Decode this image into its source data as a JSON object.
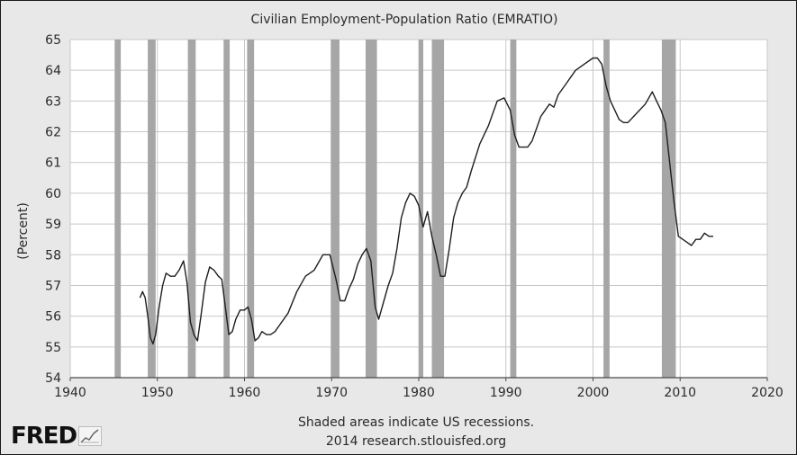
{
  "logo": {
    "text": "FRED"
  },
  "footer": {
    "line1": "Shaded areas indicate US recessions.",
    "line2": "2014 research.stlouisfed.org"
  },
  "colors": {
    "background": "#e8e8e8",
    "plot_background": "#ffffff",
    "recession": "#a6a6a6",
    "line": "#1e1e1e",
    "grid": "#c8c8c8"
  },
  "chart_data": {
    "type": "line",
    "title": "Civilian Employment-Population Ratio (EMRATIO)",
    "xlabel": "",
    "ylabel": "(Percent)",
    "xlim": [
      1940,
      2020
    ],
    "ylim": [
      54,
      65
    ],
    "x_ticks": [
      1940,
      1950,
      1960,
      1970,
      1980,
      1990,
      2000,
      2010,
      2020
    ],
    "y_ticks": [
      54,
      55,
      56,
      57,
      58,
      59,
      60,
      61,
      62,
      63,
      64,
      65
    ],
    "grid": true,
    "recessions": [
      [
        1945.1,
        1945.8
      ],
      [
        1948.9,
        1949.8
      ],
      [
        1953.5,
        1954.4
      ],
      [
        1957.6,
        1958.3
      ],
      [
        1960.3,
        1961.1
      ],
      [
        1969.9,
        1970.9
      ],
      [
        1973.9,
        1975.2
      ],
      [
        1980.0,
        1980.5
      ],
      [
        1981.5,
        1982.9
      ],
      [
        1990.5,
        1991.2
      ],
      [
        2001.2,
        2001.9
      ],
      [
        2007.9,
        2009.5
      ]
    ],
    "series": [
      {
        "x": [
          1948.0,
          1948.3,
          1948.6,
          1948.9,
          1949.2,
          1949.5,
          1949.8,
          1950.2,
          1950.6,
          1951.0,
          1951.5,
          1952.0,
          1952.5,
          1953.0,
          1953.4,
          1953.8,
          1954.2,
          1954.6,
          1955.0,
          1955.5,
          1956.0,
          1956.5,
          1957.0,
          1957.4,
          1957.8,
          1958.2,
          1958.6,
          1959.0,
          1959.5,
          1960.0,
          1960.4,
          1960.8,
          1961.2,
          1961.6,
          1962.0,
          1962.5,
          1963.0,
          1963.5,
          1964.0,
          1964.5,
          1965.0,
          1966.0,
          1967.0,
          1968.0,
          1969.0,
          1969.8,
          1970.5,
          1971.0,
          1971.5,
          1972.0,
          1972.5,
          1973.0,
          1973.5,
          1974.0,
          1974.5,
          1975.0,
          1975.4,
          1976.0,
          1976.5,
          1977.0,
          1977.5,
          1978.0,
          1978.5,
          1979.0,
          1979.5,
          1980.0,
          1980.5,
          1981.0,
          1981.5,
          1982.0,
          1982.5,
          1983.0,
          1983.5,
          1984.0,
          1984.5,
          1985.0,
          1985.5,
          1986.0,
          1987.0,
          1988.0,
          1989.0,
          1989.8,
          1990.5,
          1991.0,
          1991.5,
          1992.0,
          1992.5,
          1993.0,
          1994.0,
          1995.0,
          1995.5,
          1996.0,
          1997.0,
          1998.0,
          1999.0,
          2000.0,
          2000.5,
          2001.0,
          2001.5,
          2002.0,
          2002.5,
          2003.0,
          2003.5,
          2004.0,
          2005.0,
          2006.0,
          2006.8,
          2007.3,
          2007.8,
          2008.3,
          2008.8,
          2009.3,
          2009.8,
          2010.3,
          2010.8,
          2011.3,
          2011.8,
          2012.3,
          2012.8,
          2013.3,
          2013.8
        ],
        "values": [
          56.6,
          56.8,
          56.6,
          56.0,
          55.3,
          55.1,
          55.4,
          56.3,
          57.0,
          57.4,
          57.3,
          57.3,
          57.5,
          57.8,
          57.1,
          55.8,
          55.4,
          55.2,
          56.0,
          57.1,
          57.6,
          57.5,
          57.3,
          57.2,
          56.3,
          55.4,
          55.5,
          55.9,
          56.2,
          56.2,
          56.3,
          55.9,
          55.2,
          55.3,
          55.5,
          55.4,
          55.4,
          55.5,
          55.7,
          55.9,
          56.1,
          56.8,
          57.3,
          57.5,
          58.0,
          58.0,
          57.2,
          56.5,
          56.5,
          56.9,
          57.2,
          57.7,
          58.0,
          58.2,
          57.8,
          56.3,
          55.9,
          56.5,
          57.0,
          57.4,
          58.2,
          59.2,
          59.7,
          60.0,
          59.9,
          59.6,
          58.9,
          59.4,
          58.6,
          58.0,
          57.3,
          57.3,
          58.2,
          59.2,
          59.7,
          60.0,
          60.2,
          60.7,
          61.6,
          62.2,
          63.0,
          63.1,
          62.7,
          61.9,
          61.5,
          61.5,
          61.5,
          61.7,
          62.5,
          62.9,
          62.8,
          63.2,
          63.6,
          64.0,
          64.2,
          64.4,
          64.4,
          64.2,
          63.5,
          63.0,
          62.7,
          62.4,
          62.3,
          62.3,
          62.6,
          62.9,
          63.3,
          63.0,
          62.7,
          62.3,
          61.0,
          59.7,
          58.6,
          58.5,
          58.4,
          58.3,
          58.5,
          58.5,
          58.7,
          58.6,
          58.6
        ]
      }
    ]
  }
}
